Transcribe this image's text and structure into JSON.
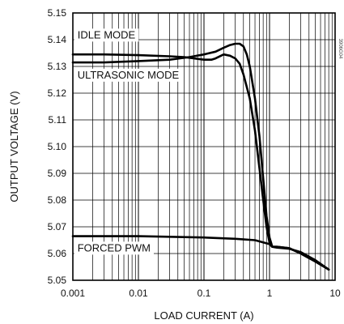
{
  "chart_data": {
    "type": "line",
    "title": "",
    "xlabel": "LOAD CURRENT (A)",
    "ylabel": "OUTPUT VOLTAGE (V)",
    "x_scale": "log",
    "xlim": [
      0.001,
      10
    ],
    "ylim": [
      5.05,
      5.15
    ],
    "grid": true,
    "x_tick_labels": [
      "0.001",
      "0.01",
      "0.1",
      "1",
      "10"
    ],
    "y_tick_labels": [
      "5.05",
      "5.06",
      "5.07",
      "5.08",
      "5.09",
      "5.10",
      "5.11",
      "5.12",
      "5.13",
      "5.14",
      "5.15"
    ],
    "side_mark": "3906G04",
    "series": [
      {
        "name": "IDLE MODE",
        "x": [
          0.001,
          0.003,
          0.01,
          0.03,
          0.06,
          0.1,
          0.15,
          0.2,
          0.25,
          0.3,
          0.35,
          0.4,
          0.45,
          0.5,
          0.6,
          0.7,
          0.8,
          0.9,
          1.0,
          1.1,
          1.3,
          2.0,
          3.0,
          5.0,
          8.0
        ],
        "y": [
          5.1315,
          5.1315,
          5.132,
          5.1325,
          5.1335,
          5.1345,
          5.1355,
          5.137,
          5.138,
          5.1385,
          5.1385,
          5.1375,
          5.1345,
          5.13,
          5.118,
          5.104,
          5.088,
          5.074,
          5.066,
          5.0625,
          5.0625,
          5.062,
          5.06,
          5.057,
          5.054
        ]
      },
      {
        "name": "ULTRASONIC MODE",
        "x": [
          0.001,
          0.003,
          0.01,
          0.03,
          0.05,
          0.07,
          0.1,
          0.13,
          0.15,
          0.2,
          0.25,
          0.3,
          0.35,
          0.4,
          0.5,
          0.6,
          0.7,
          0.8,
          0.9,
          1.0,
          1.1,
          1.3,
          2.0,
          3.0,
          5.0,
          8.0
        ],
        "y": [
          5.1345,
          5.1345,
          5.1342,
          5.1338,
          5.1335,
          5.133,
          5.1325,
          5.1325,
          5.133,
          5.1345,
          5.134,
          5.133,
          5.131,
          5.127,
          5.118,
          5.106,
          5.092,
          5.08,
          5.07,
          5.064,
          5.0625,
          5.0625,
          5.062,
          5.06,
          5.057,
          5.054
        ]
      },
      {
        "name": "FORCED PWM",
        "x": [
          0.001,
          0.01,
          0.1,
          0.3,
          0.6,
          1.0,
          1.1,
          1.3,
          2.0,
          3.0,
          5.0,
          8.0
        ],
        "y": [
          5.0665,
          5.0665,
          5.066,
          5.0655,
          5.065,
          5.0635,
          5.0625,
          5.0622,
          5.0618,
          5.0605,
          5.0575,
          5.054
        ]
      }
    ]
  }
}
